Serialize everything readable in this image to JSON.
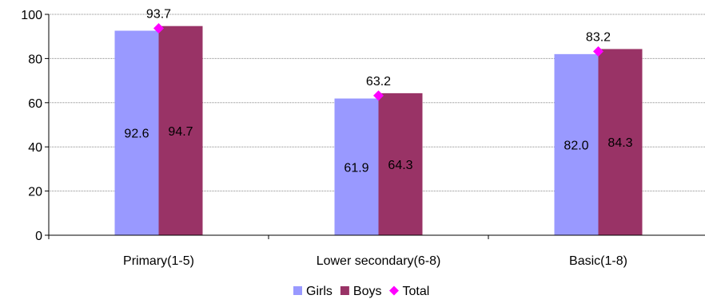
{
  "chart_data": {
    "type": "bar",
    "title": "",
    "xlabel": "",
    "ylabel": "",
    "categories": [
      "Primary(1-5)",
      "Lower secondary(6-8)",
      "Basic(1-8)"
    ],
    "ylim": [
      0,
      100
    ],
    "yticks": [
      0,
      20,
      40,
      60,
      80,
      100
    ],
    "grid": true,
    "legend": "bottom-center",
    "series": [
      {
        "name": "Girls",
        "kind": "bar",
        "color": "#9999FF",
        "values": [
          92.6,
          61.9,
          82.0
        ],
        "labels": [
          "92.6",
          "61.9",
          "82.0"
        ]
      },
      {
        "name": "Boys",
        "kind": "bar",
        "color": "#993366",
        "values": [
          94.7,
          64.3,
          84.3
        ],
        "labels": [
          "94.7",
          "64.3",
          "84.3"
        ]
      },
      {
        "name": "Total",
        "kind": "marker",
        "marker": "diamond",
        "color": "#FF00FF",
        "values": [
          93.7,
          63.2,
          83.2
        ],
        "labels": [
          "93.7",
          "63.2",
          "83.2"
        ]
      }
    ]
  }
}
